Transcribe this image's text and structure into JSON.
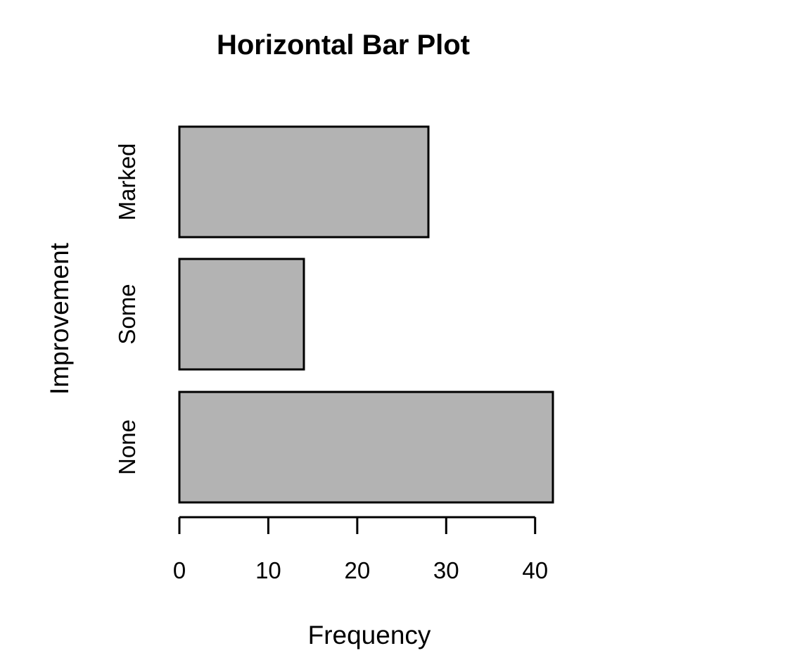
{
  "chart_data": {
    "type": "bar",
    "orientation": "horizontal",
    "title": "Horizontal Bar Plot",
    "xlabel": "Frequency",
    "ylabel": "Improvement",
    "categories": [
      "None",
      "Some",
      "Marked"
    ],
    "values": [
      42,
      14,
      28
    ],
    "xlim": [
      0,
      42
    ],
    "xticks": [
      "0",
      "10",
      "20",
      "30",
      "40"
    ],
    "xtick_values": [
      0,
      10,
      20,
      30,
      40
    ],
    "grid": false,
    "legend": "none",
    "colors": {
      "bar_fill": "#b3b3b3",
      "bar_stroke": "#000000",
      "text": "#000000"
    }
  }
}
